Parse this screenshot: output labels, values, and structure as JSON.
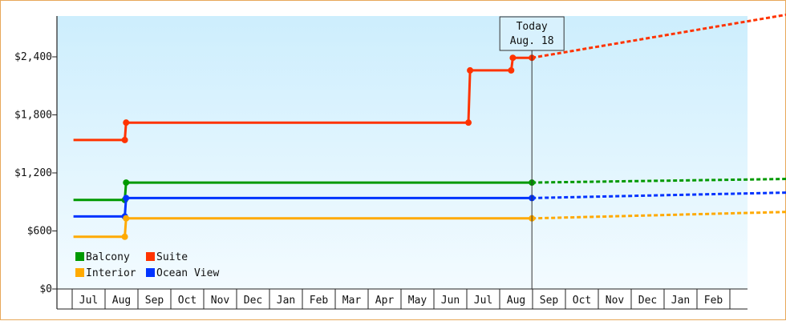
{
  "chart_data": {
    "type": "line",
    "title": "",
    "xlabel": "",
    "ylabel": "",
    "ylim": [
      0,
      2400
    ],
    "y_ticks": [
      {
        "value": 0,
        "label": "$0"
      },
      {
        "value": 600,
        "label": "$600"
      },
      {
        "value": 1200,
        "label": "$1,200"
      },
      {
        "value": 1800,
        "label": "$1,800"
      },
      {
        "value": 2400,
        "label": "$2,400"
      }
    ],
    "months": [
      "Jul",
      "Aug",
      "Sep",
      "Oct",
      "Nov",
      "Dec",
      "Jan",
      "Feb",
      "Mar",
      "Apr",
      "May",
      "Jun",
      "Jul",
      "Aug",
      "Sep",
      "Oct",
      "Nov",
      "Dec",
      "Jan",
      "Feb"
    ],
    "today": {
      "line1": "Today",
      "line2": "Aug. 18",
      "month_index": 13.48
    },
    "legend": {
      "placement": "bottom-left"
    },
    "series": [
      {
        "name": "Suite",
        "color": "#ff3300",
        "points": [
          [
            -0.46,
            1540
          ],
          [
            1.1,
            1540
          ],
          [
            1.14,
            1720
          ],
          [
            11.55,
            1720
          ],
          [
            11.6,
            2260
          ],
          [
            12.85,
            2260
          ],
          [
            12.9,
            2390
          ],
          [
            13.48,
            2390
          ]
        ],
        "forecast": [
          [
            13.48,
            2390
          ],
          [
            21.65,
            2860
          ]
        ]
      },
      {
        "name": "Balcony",
        "color": "#009900",
        "points": [
          [
            -0.46,
            920
          ],
          [
            1.1,
            920
          ],
          [
            1.14,
            1100
          ],
          [
            11.55,
            1100
          ],
          [
            12.85,
            1100
          ],
          [
            13.3,
            1100
          ],
          [
            13.48,
            1100
          ]
        ],
        "forecast": [
          [
            13.48,
            1100
          ],
          [
            21.65,
            1140
          ]
        ]
      },
      {
        "name": "Ocean View",
        "color": "#0033ff",
        "points": [
          [
            -0.46,
            750
          ],
          [
            1.1,
            750
          ],
          [
            1.14,
            940
          ],
          [
            11.55,
            940
          ],
          [
            12.85,
            940
          ],
          [
            13.48,
            940
          ]
        ],
        "forecast": [
          [
            13.48,
            940
          ],
          [
            21.65,
            1000
          ]
        ]
      },
      {
        "name": "Interior",
        "color": "#ffaa00",
        "points": [
          [
            -0.46,
            540
          ],
          [
            1.1,
            540
          ],
          [
            1.14,
            730
          ],
          [
            11.55,
            730
          ],
          [
            12.85,
            730
          ],
          [
            13.48,
            730
          ]
        ],
        "forecast": [
          [
            13.48,
            730
          ],
          [
            21.65,
            800
          ]
        ]
      }
    ]
  }
}
